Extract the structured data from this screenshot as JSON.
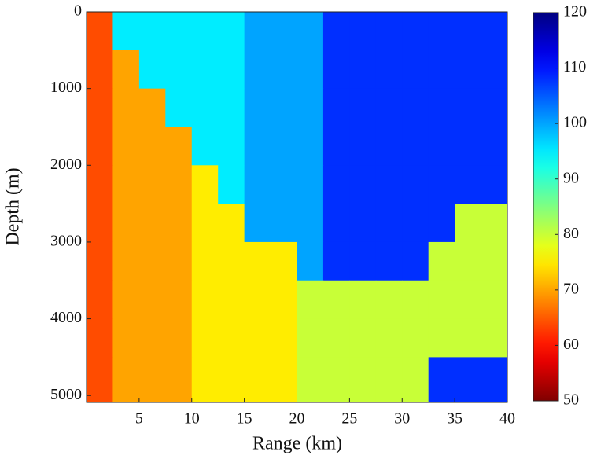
{
  "chart_data": {
    "type": "heatmap",
    "xlabel": "Range (km)",
    "ylabel": "Depth (m)",
    "x": [
      1.25,
      3.75,
      6.25,
      8.75,
      11.25,
      13.75,
      16.25,
      18.75,
      21.25,
      23.75,
      26.25,
      28.75,
      31.25,
      33.75,
      36.25,
      38.75
    ],
    "y": [
      250,
      750,
      1250,
      1750,
      2250,
      2750,
      3250,
      3750,
      4250,
      4750
    ],
    "z": [
      [
        64,
        95,
        95,
        95,
        95,
        95,
        100,
        100,
        100,
        108,
        108,
        108,
        108,
        108,
        108,
        108
      ],
      [
        64,
        70,
        95,
        95,
        95,
        95,
        100,
        100,
        100,
        108,
        108,
        108,
        108,
        108,
        108,
        108
      ],
      [
        64,
        70,
        70,
        95,
        95,
        95,
        100,
        100,
        100,
        108,
        108,
        108,
        108,
        108,
        108,
        108
      ],
      [
        64,
        70,
        70,
        70,
        95,
        95,
        100,
        100,
        100,
        108,
        108,
        108,
        108,
        108,
        108,
        108
      ],
      [
        64,
        70,
        70,
        70,
        75,
        95,
        100,
        100,
        100,
        108,
        108,
        108,
        108,
        108,
        108,
        108
      ],
      [
        64,
        70,
        70,
        70,
        75,
        75,
        100,
        100,
        100,
        108,
        108,
        108,
        108,
        108,
        80,
        80
      ],
      [
        64,
        70,
        70,
        70,
        75,
        75,
        75,
        75,
        100,
        108,
        108,
        108,
        108,
        80,
        80,
        80
      ],
      [
        64,
        70,
        70,
        70,
        75,
        75,
        75,
        75,
        80,
        80,
        80,
        80,
        80,
        80,
        80,
        80
      ],
      [
        64,
        70,
        70,
        70,
        75,
        75,
        75,
        75,
        80,
        80,
        80,
        80,
        80,
        80,
        80,
        80
      ],
      [
        64,
        70,
        70,
        70,
        75,
        75,
        75,
        75,
        80,
        80,
        80,
        80,
        80,
        108,
        108,
        108
      ]
    ],
    "xlim": [
      0,
      40
    ],
    "ylim": [
      0,
      5090
    ],
    "y_inverted": true,
    "xticks": [
      5,
      10,
      15,
      20,
      25,
      30,
      35,
      40
    ],
    "yticks": [
      0,
      1000,
      2000,
      3000,
      4000,
      5000
    ],
    "colormap": "jet_r",
    "clim": [
      50,
      120
    ],
    "cticks": [
      50,
      60,
      70,
      80,
      90,
      100,
      110,
      120
    ]
  }
}
